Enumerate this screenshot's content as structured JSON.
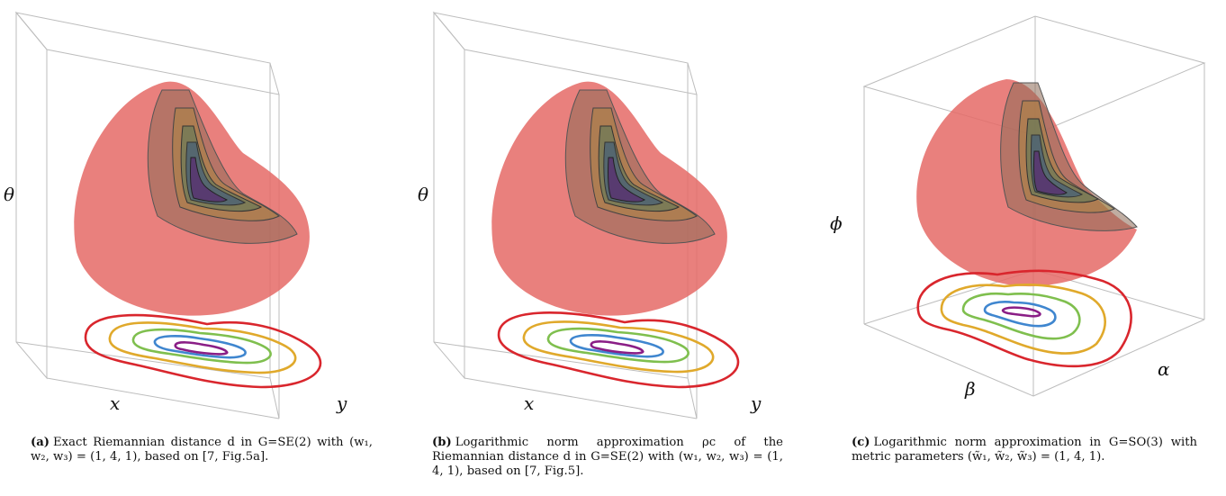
{
  "panels": [
    {
      "id": "a",
      "axis_labels": {
        "vertical": "θ",
        "left": "x",
        "right": "y"
      },
      "caption": {
        "tag": "(a)",
        "text": "Exact Riemannian distance d in G=SE(2) with (w₁, w₂, w₃) = (1, 4, 1), based on [7, Fig.5a]."
      }
    },
    {
      "id": "b",
      "axis_labels": {
        "vertical": "θ",
        "left": "x",
        "right": "y"
      },
      "caption": {
        "tag": "(b)",
        "text": "Logarithmic norm approximation ρc of the Riemannian distance d in G=SE(2) with (w₁, w₂, w₃) = (1, 4, 1), based on [7, Fig.5]."
      }
    },
    {
      "id": "c",
      "axis_labels": {
        "vertical": "ϕ",
        "left": "β",
        "right": "α"
      },
      "caption": {
        "tag": "(c)",
        "text": "Logarithmic norm approximation in G=SO(3) with metric parameters (w̃₁, w̃₂, w̃₃) = (1, 4, 1)."
      }
    }
  ],
  "colors": {
    "contours": [
      "#d9262d",
      "#e0a92b",
      "#7fbf4e",
      "#3f86cf",
      "#8a1e86"
    ],
    "outer_surface": "#e56a66",
    "inner_surface": "#c9a0a6",
    "box_edges": "#b9b9b9"
  }
}
